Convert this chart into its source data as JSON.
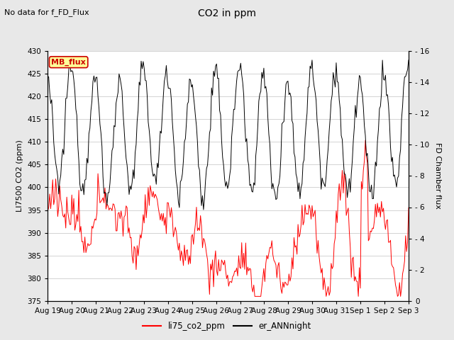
{
  "title": "CO2 in ppm",
  "subtitle": "No data for f_FD_Flux",
  "ylabel_left": "LI7500 CO2 (ppm)",
  "ylabel_right": "FD Chamber flux",
  "ylim_left": [
    375,
    430
  ],
  "ylim_right": [
    0,
    16
  ],
  "yticks_left": [
    375,
    380,
    385,
    390,
    395,
    400,
    405,
    410,
    415,
    420,
    425,
    430
  ],
  "yticks_right": [
    0,
    2,
    4,
    6,
    8,
    10,
    12,
    14,
    16
  ],
  "x_labels": [
    "Aug 19",
    "Aug 20",
    "Aug 21",
    "Aug 22",
    "Aug 23",
    "Aug 24",
    "Aug 25",
    "Aug 26",
    "Aug 27",
    "Aug 28",
    "Aug 29",
    "Aug 30",
    "Aug 31",
    "Sep 1",
    "Sep 2",
    "Sep 3"
  ],
  "legend_entries": [
    "li75_co2_ppm",
    "er_ANNnight"
  ],
  "line_colors": [
    "red",
    "black"
  ],
  "mb_flux_label": "MB_flux",
  "mb_flux_color": "#cc0000",
  "mb_flux_bg": "#ffff99",
  "mb_flux_border": "#cc0000",
  "background_color": "#e8e8e8",
  "plot_bg": "white",
  "grid_color": "#cccccc",
  "figsize": [
    6.4,
    4.8
  ],
  "dpi": 100
}
